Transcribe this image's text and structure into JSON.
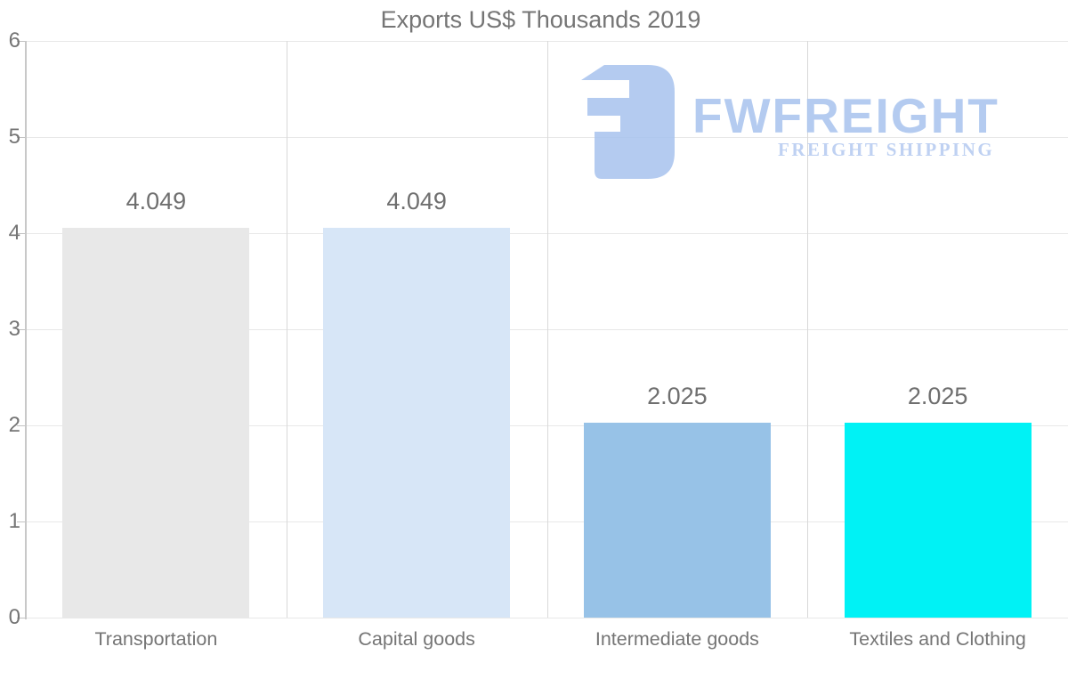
{
  "chart_data": {
    "type": "bar",
    "title": "Exports US$ Thousands 2019",
    "categories": [
      "Transportation",
      "Capital goods",
      "Intermediate goods",
      "Textiles and Clothing"
    ],
    "values": [
      4.049,
      4.049,
      2.025,
      2.025
    ],
    "value_labels": [
      "4.049",
      "4.049",
      "2.025",
      "2.025"
    ],
    "bar_colors": [
      "#e8e8e8",
      "#d7e6f7",
      "#97c2e7",
      "#00f2f5"
    ],
    "xlabel": "",
    "ylabel": "",
    "ylim": [
      0,
      6
    ],
    "yticks": [
      "0",
      "1",
      "2",
      "3",
      "4",
      "5",
      "6"
    ],
    "grid": "on",
    "legend": "none"
  },
  "watermark": {
    "brand": "FWFREIGHT",
    "tagline": "FREIGHT SHIPPING",
    "color": "#a7c3ee"
  }
}
